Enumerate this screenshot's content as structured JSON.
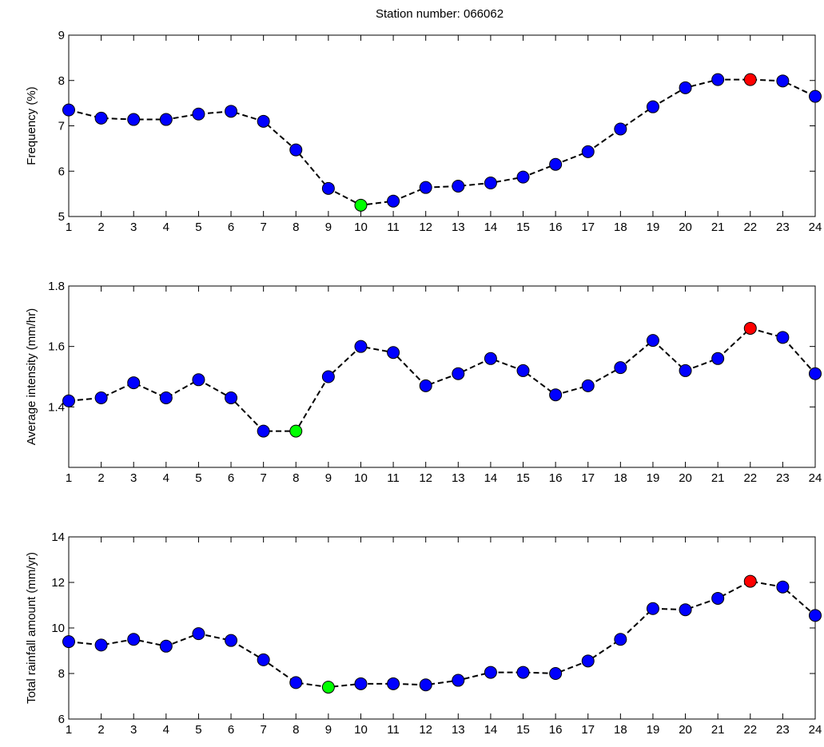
{
  "figure": {
    "title": "Station number: 066062"
  },
  "style": {
    "marker_normal": "#0000ff",
    "marker_min": "#00ff00",
    "marker_max": "#ff0000",
    "line_color": "#000000",
    "background": "#ffffff"
  },
  "chart_data": [
    {
      "type": "line",
      "title": "Station number: 066062",
      "xlabel": "",
      "ylabel": "Frequency (%)",
      "x": [
        1,
        2,
        3,
        4,
        5,
        6,
        7,
        8,
        9,
        10,
        11,
        12,
        13,
        14,
        15,
        16,
        17,
        18,
        19,
        20,
        21,
        22,
        23,
        24
      ],
      "x_tick_labels": [
        "1",
        "2",
        "3",
        "4",
        "5",
        "6",
        "7",
        "8",
        "9",
        "10",
        "11",
        "12",
        "13",
        "14",
        "15",
        "16",
        "17",
        "18",
        "19",
        "20",
        "21",
        "22",
        "23",
        "24"
      ],
      "xlim": [
        1,
        24
      ],
      "ylim": [
        5,
        9
      ],
      "y_ticks": [
        5,
        6,
        7,
        8,
        9
      ],
      "y_tick_labels": [
        "5",
        "6",
        "7",
        "8",
        "9"
      ],
      "grid": false,
      "line_style": "dashed",
      "series": [
        {
          "values": [
            7.35,
            7.17,
            7.14,
            7.14,
            7.26,
            7.32,
            7.1,
            6.47,
            5.62,
            5.25,
            5.34,
            5.64,
            5.67,
            5.74,
            5.87,
            6.15,
            6.43,
            6.93,
            7.42,
            7.84,
            8.02,
            8.02,
            7.99,
            7.65
          ]
        }
      ],
      "min_index": 9,
      "max_index": 21
    },
    {
      "type": "line",
      "title": "",
      "xlabel": "",
      "ylabel": "Average intensity (mm/hr)",
      "x": [
        1,
        2,
        3,
        4,
        5,
        6,
        7,
        8,
        9,
        10,
        11,
        12,
        13,
        14,
        15,
        16,
        17,
        18,
        19,
        20,
        21,
        22,
        23,
        24
      ],
      "x_tick_labels": [
        "1",
        "2",
        "3",
        "4",
        "5",
        "6",
        "7",
        "8",
        "9",
        "10",
        "11",
        "12",
        "13",
        "14",
        "15",
        "16",
        "17",
        "18",
        "19",
        "20",
        "21",
        "22",
        "23",
        "24"
      ],
      "xlim": [
        1,
        24
      ],
      "ylim": [
        1.2,
        1.8
      ],
      "y_ticks": [
        1.4,
        1.6,
        1.8
      ],
      "y_tick_labels": [
        "1.4",
        "1.6",
        "1.8"
      ],
      "grid": false,
      "line_style": "dashed",
      "series": [
        {
          "values": [
            1.42,
            1.43,
            1.48,
            1.43,
            1.49,
            1.43,
            1.32,
            1.32,
            1.5,
            1.6,
            1.58,
            1.47,
            1.51,
            1.56,
            1.52,
            1.44,
            1.47,
            1.53,
            1.62,
            1.52,
            1.56,
            1.66,
            1.63,
            1.51
          ]
        }
      ],
      "min_index": 7,
      "max_index": 21
    },
    {
      "type": "line",
      "title": "",
      "xlabel": "",
      "ylabel": "Total rainfall amount (mm/yr)",
      "x": [
        1,
        2,
        3,
        4,
        5,
        6,
        7,
        8,
        9,
        10,
        11,
        12,
        13,
        14,
        15,
        16,
        17,
        18,
        19,
        20,
        21,
        22,
        23,
        24
      ],
      "x_tick_labels": [
        "1",
        "2",
        "3",
        "4",
        "5",
        "6",
        "7",
        "8",
        "9",
        "10",
        "11",
        "12",
        "13",
        "14",
        "15",
        "16",
        "17",
        "18",
        "19",
        "20",
        "21",
        "22",
        "23",
        "24"
      ],
      "xlim": [
        1,
        24
      ],
      "ylim": [
        6,
        14
      ],
      "y_ticks": [
        6,
        8,
        10,
        12,
        14
      ],
      "y_tick_labels": [
        "6",
        "8",
        "10",
        "12",
        "14"
      ],
      "grid": false,
      "line_style": "dashed",
      "series": [
        {
          "values": [
            9.4,
            9.25,
            9.5,
            9.2,
            9.75,
            9.45,
            8.6,
            7.6,
            7.4,
            7.55,
            7.55,
            7.5,
            7.7,
            8.05,
            8.05,
            8.0,
            8.55,
            9.5,
            10.85,
            10.8,
            11.3,
            12.05,
            11.8,
            10.55
          ]
        }
      ],
      "min_index": 8,
      "max_index": 21
    }
  ]
}
